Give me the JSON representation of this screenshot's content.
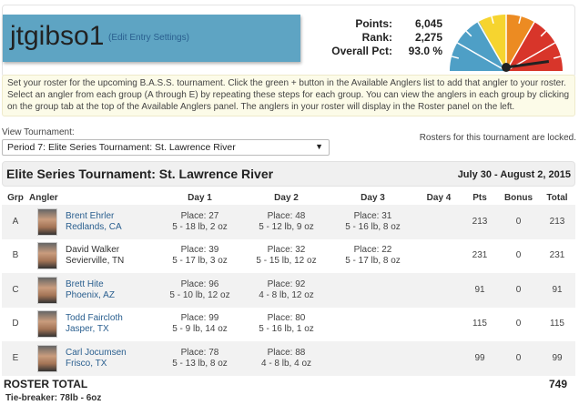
{
  "header": {
    "username": "jtgibso1",
    "edit_link": "(Edit Entry Settings)",
    "stats": [
      {
        "label": "Points:",
        "value": "6,045"
      },
      {
        "label": "Rank:",
        "value": "2,275"
      },
      {
        "label": "Overall Pct:",
        "value": "93.0 %"
      }
    ],
    "gauge_percent": 93.0,
    "gauge_colors": {
      "blue": "#4e9fc6",
      "yellow": "#f6d42f",
      "orange": "#ec8b22",
      "red": "#d8352a"
    }
  },
  "notice": "Set your roster for the upcoming B.A.S.S. tournament. Click the green + button in the Available Anglers list to add that angler to your roster. Select an angler from each group (A through E) by repeating these steps for each group. You can view the anglers in each group by clicking on the group tab at the top of the Available Anglers panel. The anglers in your roster will display in the Roster panel on the left.",
  "tournament_select": {
    "label": "View Tournament:",
    "value": "Period 7: Elite Series Tournament: St. Lawrence River"
  },
  "locked_msg": "Rosters for this tournament are locked.",
  "tournament": {
    "title": "Elite Series Tournament: St. Lawrence River",
    "dates": "July 30 - August 2, 2015"
  },
  "table": {
    "headers": [
      "Grp",
      "Angler",
      "",
      "Day 1",
      "Day 2",
      "Day 3",
      "Day 4",
      "Pts",
      "Bonus",
      "Total"
    ],
    "rows": [
      {
        "grp": "A",
        "name": "Brent Ehrler",
        "home": "Redlands, CA",
        "d1p": "Place: 27",
        "d1w": "5 - 18 lb, 2 oz",
        "d2p": "Place: 48",
        "d2w": "5 - 12 lb, 9 oz",
        "d3p": "Place: 31",
        "d3w": "5 - 16 lb, 8 oz",
        "pts": "213",
        "bonus": "0",
        "total": "213"
      },
      {
        "grp": "B",
        "name": "David Walker",
        "home": "Sevierville, TN",
        "d1p": "Place: 39",
        "d1w": "5 - 17 lb, 3 oz",
        "d2p": "Place: 32",
        "d2w": "5 - 15 lb, 12 oz",
        "d3p": "Place: 22",
        "d3w": "5 - 17 lb, 8 oz",
        "pts": "231",
        "bonus": "0",
        "total": "231"
      },
      {
        "grp": "C",
        "name": "Brett Hite",
        "home": "Phoenix, AZ",
        "d1p": "Place: 96",
        "d1w": "5 - 10 lb, 12 oz",
        "d2p": "Place: 92",
        "d2w": "4 - 8 lb, 12 oz",
        "d3p": "",
        "d3w": "",
        "pts": "91",
        "bonus": "0",
        "total": "91"
      },
      {
        "grp": "D",
        "name": "Todd Faircloth",
        "home": "Jasper, TX",
        "d1p": "Place: 99",
        "d1w": "5 - 9 lb, 14 oz",
        "d2p": "Place: 80",
        "d2w": "5 - 16 lb, 1 oz",
        "d3p": "",
        "d3w": "",
        "pts": "115",
        "bonus": "0",
        "total": "115"
      },
      {
        "grp": "E",
        "name": "Carl Jocumsen",
        "home": "Frisco, TX",
        "d1p": "Place: 78",
        "d1w": "5 - 13 lb, 8 oz",
        "d2p": "Place: 88",
        "d2w": "4 - 8 lb, 4 oz",
        "d3p": "",
        "d3w": "",
        "pts": "99",
        "bonus": "0",
        "total": "99"
      }
    ]
  },
  "roster_total": {
    "label": "ROSTER TOTAL",
    "value": "749"
  },
  "tiebreaker": "Tie-breaker: 78lb - 6oz"
}
